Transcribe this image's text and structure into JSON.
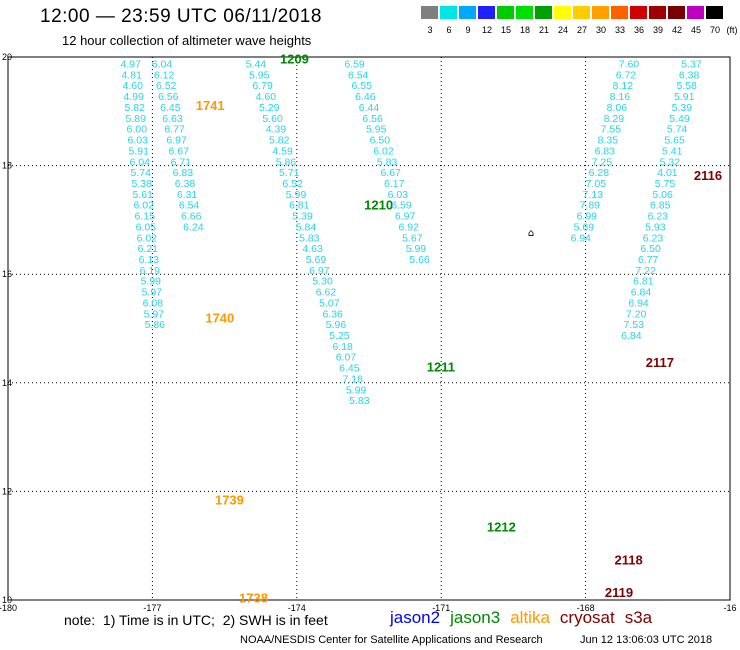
{
  "header": {
    "title": "12:00 — 23:59 UTC 06/11/2018",
    "subtitle": "12 hour collection of altimeter wave heights"
  },
  "legend": {
    "unit": "(ft)",
    "items": [
      {
        "label": "3",
        "color": "#7f7f7f"
      },
      {
        "label": "6",
        "color": "#00e5e5"
      },
      {
        "label": "9",
        "color": "#00a8ff"
      },
      {
        "label": "12",
        "color": "#1f1fff"
      },
      {
        "label": "15",
        "color": "#00cc00"
      },
      {
        "label": "18",
        "color": "#00e000"
      },
      {
        "label": "21",
        "color": "#00a000"
      },
      {
        "label": "24",
        "color": "#ffff00"
      },
      {
        "label": "27",
        "color": "#ffcc00"
      },
      {
        "label": "30",
        "color": "#ffa000"
      },
      {
        "label": "33",
        "color": "#ff6000"
      },
      {
        "label": "36",
        "color": "#d00000"
      },
      {
        "label": "39",
        "color": "#a00000"
      },
      {
        "label": "42",
        "color": "#780000"
      },
      {
        "label": "45",
        "color": "#c000c0"
      },
      {
        "label": "70",
        "color": "#000000"
      }
    ]
  },
  "colors": {
    "value_text": "#29d4e8",
    "jason2": "#0000ff",
    "jason3": "#008800",
    "altika": "#ff9900",
    "cryosat": "#800000",
    "s3a": "#800000"
  },
  "map": {
    "lon_range": [
      -180,
      -165
    ],
    "lat_range": [
      10,
      20
    ],
    "x_ticks": [
      "-180",
      "-177",
      "-174",
      "-171",
      "-168",
      "-16"
    ],
    "y_ticks": [
      "20",
      "18",
      "16",
      "14",
      "12",
      "10"
    ],
    "marker_symbol": "⌂",
    "passes": [
      {
        "sat": "altika",
        "labels": [
          {
            "text": "1741",
            "lat": 19.12,
            "lon": -176.1
          },
          {
            "text": "1740",
            "lat": 15.2,
            "lon": -175.9
          }
        ],
        "lon_top": -177.45,
        "lon_bottom": -176.95,
        "values": [
          "4.97",
          "4.81",
          "4.60",
          "4.99",
          "5.82",
          "5.89",
          "6.00",
          "6.03",
          "5.91",
          "6.04",
          "5.74",
          "5.38",
          "5.61",
          "6.02",
          "6.15",
          "6.05",
          "6.02",
          "6.21",
          "6.13",
          "6.19",
          "5.99",
          "5.97",
          "6.08",
          "5.97",
          "5.86"
        ]
      },
      {
        "sat": "altika",
        "labels": [
          {
            "text": "1739",
            "lat": 11.85,
            "lon": -175.7
          },
          {
            "text": "1738",
            "lat": 10.05,
            "lon": -175.2
          }
        ],
        "lon_top": -176.8,
        "lon_bottom": -176.15,
        "values": [
          "6.04",
          "6.12",
          "6.52",
          "6.56",
          "6.45",
          "6.63",
          "6.77",
          "6.97",
          "6.67",
          "6.71",
          "6.83",
          "6.38",
          "6.31",
          "6.54",
          "6.66",
          "6.24"
        ]
      },
      {
        "sat": "jason3",
        "labels": [
          {
            "text": "1209",
            "lat": 19.97,
            "lon": -174.35
          },
          {
            "text": "1210",
            "lat": 17.28,
            "lon": -172.6
          }
        ],
        "lon_top": -174.85,
        "lon_bottom": -172.7,
        "values": [
          "5.44",
          "5.95",
          "6.79",
          "4.60",
          "5.29",
          "5.60",
          "4.39",
          "5.82",
          "4.59",
          "5.86",
          "5.71",
          "6.52",
          "5.99",
          "6.81",
          "5.39",
          "5.84",
          "5.83",
          "4.63",
          "5.69",
          "6.97",
          "5.30",
          "6.62",
          "5.07",
          "6.36",
          "5.96",
          "5.25",
          "6.18",
          "6.07",
          "6.45",
          "7.18",
          "5.99",
          "5.83"
        ]
      },
      {
        "sat": "jason3",
        "labels": [
          {
            "text": "1211",
            "lat": 14.3,
            "lon": -171.3
          },
          {
            "text": "1212",
            "lat": 11.35,
            "lon": -170.05
          }
        ],
        "lon_top": -172.8,
        "lon_bottom": -171.45,
        "values": [
          "6.59",
          "6.54",
          "6.55",
          "6.46",
          "6.44",
          "6.56",
          "5.95",
          "6.50",
          "6.02",
          "5.83",
          "6.67",
          "6.17",
          "6.03",
          "6.59",
          "6.97",
          "6.92",
          "5.67",
          "5.99",
          "5.66"
        ]
      },
      {
        "sat": "cryosat",
        "labels": [
          {
            "text": "2116",
            "lat": 17.83,
            "lon": -165.75
          },
          {
            "text": "2117",
            "lat": 14.38,
            "lon": -166.75
          }
        ],
        "lon_top": -165.8,
        "lon_bottom": -167.05,
        "values": [
          "5.37",
          "6.38",
          "5.58",
          "5.91",
          "5.39",
          "5.49",
          "5.74",
          "5.65",
          "5.41",
          "5.32",
          "4.01",
          "5.75",
          "5.06",
          "6.85",
          "6.23",
          "5.93",
          "6.23",
          "6.50",
          "6.77",
          "7.22",
          "6.81",
          "6.84",
          "6.94",
          "7.20",
          "7.53",
          "6.84"
        ]
      },
      {
        "sat": "cryosat",
        "labels": [
          {
            "text": "2118",
            "lat": 10.75,
            "lon": -167.4
          },
          {
            "text": "2119",
            "lat": 10.15,
            "lon": -167.6
          }
        ],
        "lon_top": -167.1,
        "lon_bottom": -168.1,
        "values": [
          "7.60",
          "6.72",
          "8.12",
          "8.16",
          "8.06",
          "8.29",
          "7.55",
          "8.35",
          "6.83",
          "7.25",
          "6.28",
          "7.05",
          "7.13",
          "7.89",
          "6.99",
          "5.69",
          "6.94"
        ]
      }
    ]
  },
  "footer": {
    "note": "note:  1) Time is in UTC;  2) SWH is in feet",
    "satellites": [
      {
        "key": "jason2",
        "label": "jason2"
      },
      {
        "key": "jason3",
        "label": "jason3"
      },
      {
        "key": "altika",
        "label": "altika"
      },
      {
        "key": "cryosat",
        "label": "cryosat"
      },
      {
        "key": "s3a",
        "label": "s3a"
      }
    ],
    "credit": "NOAA/NESDIS Center for Satellite Applications and Research",
    "timestamp": "Jun 12 13:06:03 UTC 2018"
  }
}
